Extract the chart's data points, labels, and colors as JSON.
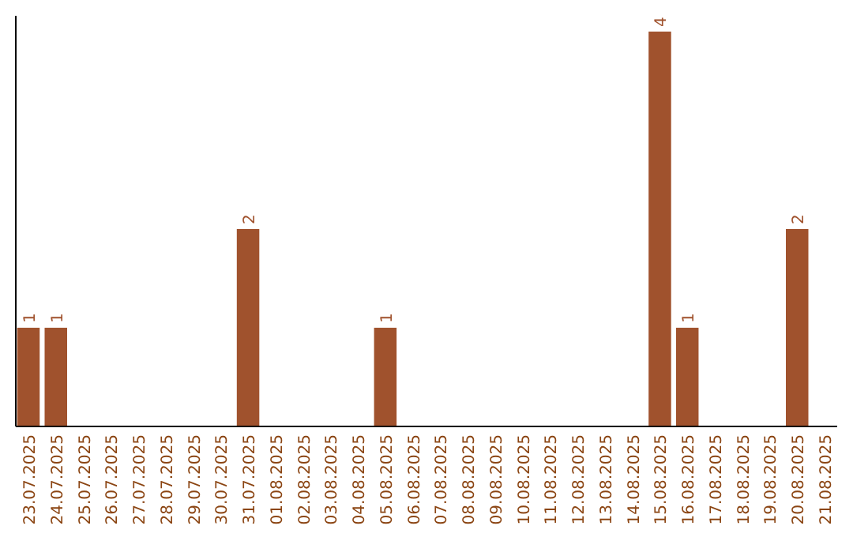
{
  "chart_data": {
    "type": "bar",
    "categories": [
      "23.07.2025",
      "24.07.2025",
      "25.07.2025",
      "26.07.2025",
      "27.07.2025",
      "28.07.2025",
      "29.07.2025",
      "30.07.2025",
      "31.07.2025",
      "01.08.2025",
      "02.08.2025",
      "03.08.2025",
      "04.08.2025",
      "05.08.2025",
      "06.08.2025",
      "07.08.2025",
      "08.08.2025",
      "09.08.2025",
      "10.08.2025",
      "11.08.2025",
      "12.08.2025",
      "13.08.2025",
      "14.08.2025",
      "15.08.2025",
      "16.08.2025",
      "17.08.2025",
      "18.08.2025",
      "19.08.2025",
      "20.08.2025",
      "21.08.2025"
    ],
    "values": [
      1,
      1,
      0,
      0,
      0,
      0,
      0,
      0,
      2,
      0,
      0,
      0,
      0,
      1,
      0,
      0,
      0,
      0,
      0,
      0,
      0,
      0,
      0,
      4,
      1,
      0,
      0,
      0,
      2,
      0
    ],
    "value_labels": [
      "1",
      "1",
      null,
      null,
      null,
      null,
      null,
      null,
      "2",
      null,
      null,
      null,
      null,
      "1",
      null,
      null,
      null,
      null,
      null,
      null,
      null,
      null,
      null,
      "4",
      "1",
      null,
      null,
      null,
      "2",
      null
    ],
    "color": "#a0522d",
    "tick_labels": "x",
    "grid": false
  }
}
